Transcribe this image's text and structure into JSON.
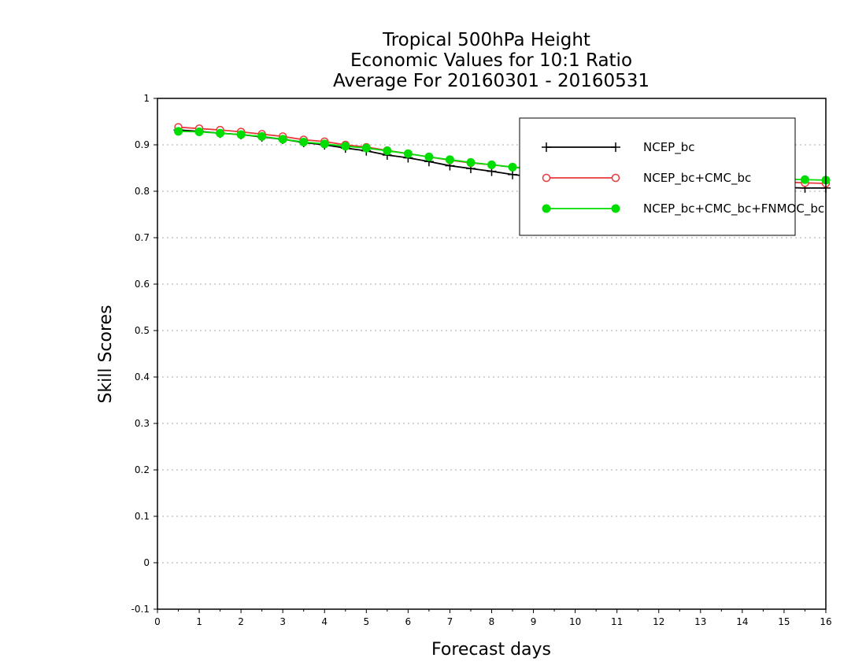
{
  "chart_data": {
    "type": "line",
    "title_lines": [
      "Tropical 500hPa Height",
      "Economic Values for 10:1 Ratio",
      "Average For 20160301 - 20160531"
    ],
    "xlabel": "Forecast days",
    "ylabel": "Skill Scores",
    "xlim": [
      0,
      16
    ],
    "ylim": [
      -0.1,
      1
    ],
    "x_ticks": [
      "0",
      "1",
      "2",
      "3",
      "4",
      "5",
      "6",
      "7",
      "8",
      "9",
      "10",
      "11",
      "12",
      "13",
      "14",
      "15",
      "16"
    ],
    "y_ticks": [
      "-0.1",
      "0",
      "0.1",
      "0.2",
      "0.3",
      "0.4",
      "0.5",
      "0.6",
      "0.7",
      "0.8",
      "0.9",
      "1"
    ],
    "grid": "horizontal dotted",
    "legend_position": "top-right",
    "x": [
      0.5,
      1,
      1.5,
      2,
      2.5,
      3,
      3.5,
      4,
      4.5,
      5,
      5.5,
      6,
      6.5,
      7,
      7.5,
      8,
      8.5,
      9,
      9.5,
      10,
      10.5,
      11,
      11.5,
      12,
      12.5,
      13,
      13.5,
      14,
      14.5,
      15,
      15.5,
      16
    ],
    "series": [
      {
        "name": "NCEP_bc",
        "color": "#000000",
        "marker": "plus",
        "values": [
          0.932,
          0.929,
          0.925,
          0.922,
          0.917,
          0.912,
          0.905,
          0.9,
          0.893,
          0.887,
          0.878,
          0.872,
          0.864,
          0.855,
          0.849,
          0.843,
          0.836,
          0.831,
          0.826,
          0.822,
          0.819,
          0.817,
          0.815,
          0.814,
          0.813,
          0.812,
          0.811,
          0.81,
          0.809,
          0.808,
          0.807,
          0.807
        ]
      },
      {
        "name": "NCEP_bc+CMC_bc",
        "color": "#e8383a",
        "marker": "open-circle",
        "values": [
          0.938,
          0.935,
          0.932,
          0.928,
          0.923,
          0.918,
          0.911,
          0.907,
          0.9,
          0.895,
          0.888,
          0.881,
          0.874,
          0.867,
          0.861,
          0.857,
          0.852,
          0.848,
          0.845,
          0.842,
          0.839,
          0.836,
          0.833,
          0.831,
          0.829,
          0.827,
          0.825,
          0.823,
          0.821,
          0.82,
          0.818,
          0.817
        ]
      },
      {
        "name": "NCEP_bc+CMC_bc+FNMOC_bc",
        "color": "#00dd00",
        "marker": "filled-circle",
        "values": [
          0.929,
          0.928,
          0.925,
          0.922,
          0.918,
          0.912,
          0.906,
          0.902,
          0.897,
          0.893,
          0.887,
          0.881,
          0.874,
          0.868,
          0.862,
          0.857,
          0.852,
          0.848,
          0.845,
          0.842,
          0.84,
          0.838,
          0.836,
          0.834,
          0.832,
          0.831,
          0.829,
          0.828,
          0.827,
          0.826,
          0.825,
          0.824
        ]
      }
    ]
  }
}
